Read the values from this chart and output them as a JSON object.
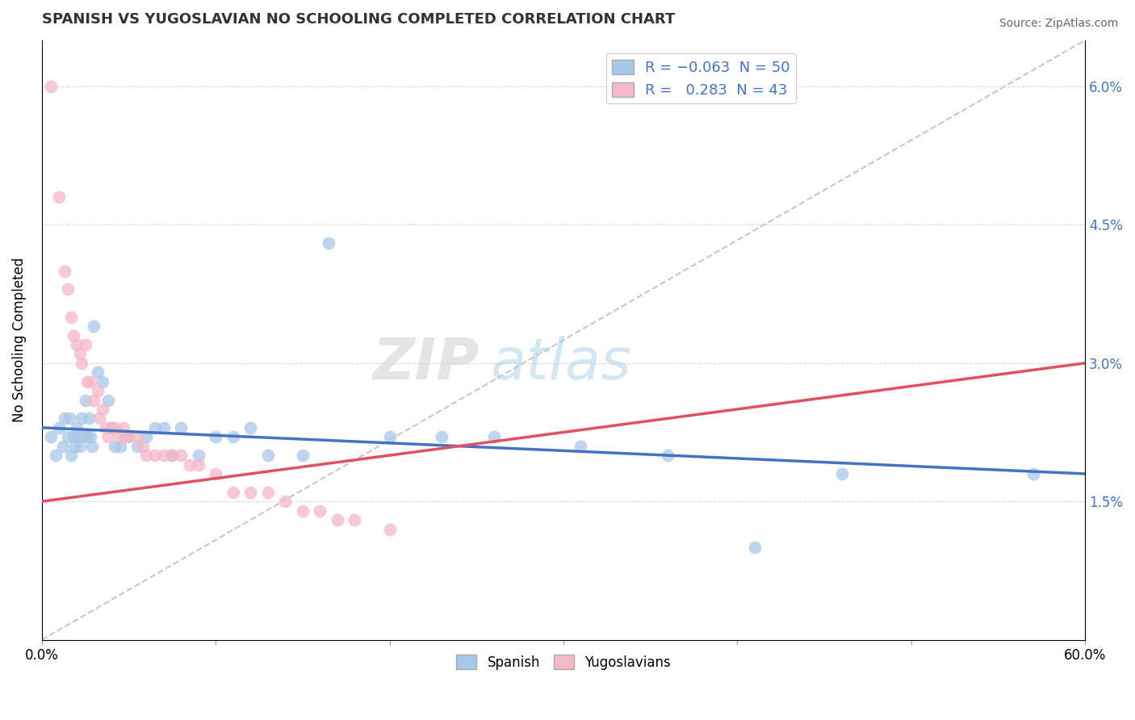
{
  "title": "SPANISH VS YUGOSLAVIAN NO SCHOOLING COMPLETED CORRELATION CHART",
  "source": "Source: ZipAtlas.com",
  "ylabel": "No Schooling Completed",
  "xlim": [
    0.0,
    0.6
  ],
  "ylim": [
    0.0,
    0.065
  ],
  "ytick_vals": [
    0.015,
    0.03,
    0.045,
    0.06
  ],
  "watermark_zip": "ZIP",
  "watermark_atlas": "atlas",
  "spanish_color": "#a8c8e8",
  "yugoslavian_color": "#f4b8c8",
  "trend_spanish_color": "#4472c4",
  "trend_yugoslav_color": "#e05060",
  "dashed_line_color": "#c8c8c8",
  "background_color": "#ffffff",
  "spanish_points": [
    [
      0.005,
      0.022
    ],
    [
      0.008,
      0.02
    ],
    [
      0.01,
      0.023
    ],
    [
      0.012,
      0.021
    ],
    [
      0.013,
      0.024
    ],
    [
      0.015,
      0.022
    ],
    [
      0.016,
      0.024
    ],
    [
      0.017,
      0.02
    ],
    [
      0.018,
      0.022
    ],
    [
      0.019,
      0.021
    ],
    [
      0.02,
      0.023
    ],
    [
      0.021,
      0.022
    ],
    [
      0.022,
      0.021
    ],
    [
      0.023,
      0.024
    ],
    [
      0.024,
      0.022
    ],
    [
      0.025,
      0.026
    ],
    [
      0.026,
      0.022
    ],
    [
      0.027,
      0.024
    ],
    [
      0.028,
      0.022
    ],
    [
      0.029,
      0.021
    ],
    [
      0.03,
      0.034
    ],
    [
      0.032,
      0.029
    ],
    [
      0.035,
      0.028
    ],
    [
      0.038,
      0.026
    ],
    [
      0.04,
      0.023
    ],
    [
      0.042,
      0.021
    ],
    [
      0.045,
      0.021
    ],
    [
      0.048,
      0.022
    ],
    [
      0.05,
      0.022
    ],
    [
      0.055,
      0.021
    ],
    [
      0.06,
      0.022
    ],
    [
      0.065,
      0.023
    ],
    [
      0.07,
      0.023
    ],
    [
      0.075,
      0.02
    ],
    [
      0.08,
      0.023
    ],
    [
      0.09,
      0.02
    ],
    [
      0.1,
      0.022
    ],
    [
      0.11,
      0.022
    ],
    [
      0.12,
      0.023
    ],
    [
      0.13,
      0.02
    ],
    [
      0.15,
      0.02
    ],
    [
      0.165,
      0.043
    ],
    [
      0.2,
      0.022
    ],
    [
      0.23,
      0.022
    ],
    [
      0.26,
      0.022
    ],
    [
      0.31,
      0.021
    ],
    [
      0.36,
      0.02
    ],
    [
      0.41,
      0.01
    ],
    [
      0.46,
      0.018
    ],
    [
      0.57,
      0.018
    ]
  ],
  "yugoslavian_points": [
    [
      0.005,
      0.06
    ],
    [
      0.01,
      0.048
    ],
    [
      0.013,
      0.04
    ],
    [
      0.015,
      0.038
    ],
    [
      0.017,
      0.035
    ],
    [
      0.018,
      0.033
    ],
    [
      0.02,
      0.032
    ],
    [
      0.022,
      0.031
    ],
    [
      0.023,
      0.03
    ],
    [
      0.025,
      0.032
    ],
    [
      0.026,
      0.028
    ],
    [
      0.028,
      0.028
    ],
    [
      0.03,
      0.026
    ],
    [
      0.032,
      0.027
    ],
    [
      0.033,
      0.024
    ],
    [
      0.035,
      0.025
    ],
    [
      0.037,
      0.023
    ],
    [
      0.038,
      0.022
    ],
    [
      0.04,
      0.023
    ],
    [
      0.042,
      0.023
    ],
    [
      0.045,
      0.022
    ],
    [
      0.047,
      0.023
    ],
    [
      0.048,
      0.022
    ],
    [
      0.05,
      0.022
    ],
    [
      0.055,
      0.022
    ],
    [
      0.058,
      0.021
    ],
    [
      0.06,
      0.02
    ],
    [
      0.065,
      0.02
    ],
    [
      0.07,
      0.02
    ],
    [
      0.075,
      0.02
    ],
    [
      0.08,
      0.02
    ],
    [
      0.085,
      0.019
    ],
    [
      0.09,
      0.019
    ],
    [
      0.1,
      0.018
    ],
    [
      0.11,
      0.016
    ],
    [
      0.12,
      0.016
    ],
    [
      0.13,
      0.016
    ],
    [
      0.14,
      0.015
    ],
    [
      0.15,
      0.014
    ],
    [
      0.16,
      0.014
    ],
    [
      0.17,
      0.013
    ],
    [
      0.18,
      0.013
    ],
    [
      0.2,
      0.012
    ]
  ],
  "sp_trend": [
    0.0,
    0.6,
    0.023,
    0.018
  ],
  "yu_trend": [
    0.0,
    0.6,
    0.015,
    0.03
  ]
}
